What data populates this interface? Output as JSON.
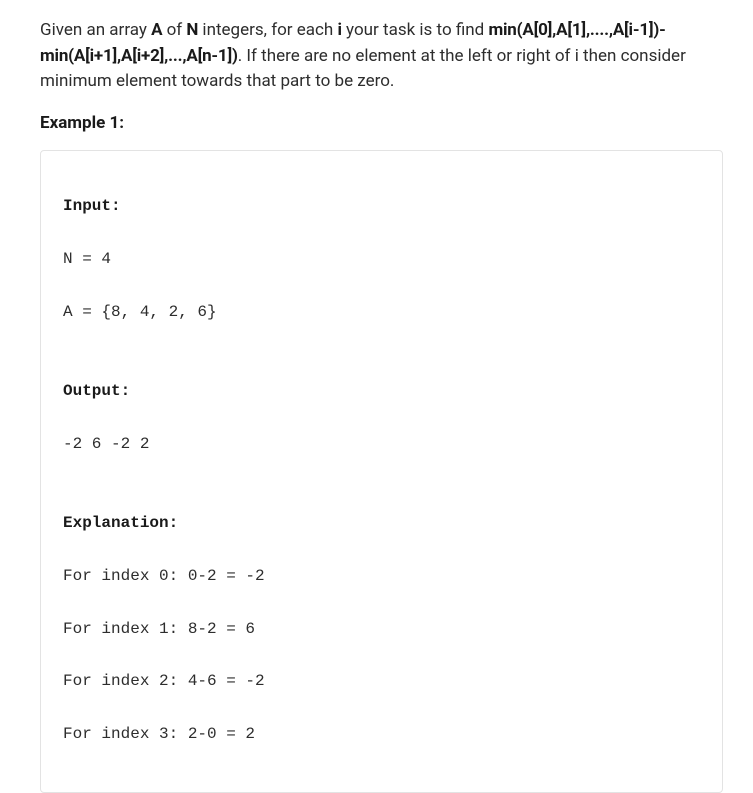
{
  "problem": {
    "part1": "Given an array ",
    "A": "A",
    "part2": " of ",
    "N": "N",
    "part3": " integers, for each ",
    "i": "i",
    "part4": " your task is to find ",
    "formula": "min(A[0],A[1],....,A[i-1])-min(A[i+1],A[i+2],...,A[n-1])",
    "part5": ". If there are no element at the left or right of i then consider minimum element towards that part to be zero."
  },
  "example": {
    "label": "Example 1:",
    "input_label": "Input:",
    "input_lines": [
      "N = 4",
      "A = {8, 4, 2, 6}"
    ],
    "output_label": "Output:",
    "output_lines": [
      "-2 6 -2 2"
    ],
    "explanation_label": "Explanation:",
    "explanation_lines": [
      "For index 0: 0-2 = -2",
      "For index 1: 8-2 = 6",
      "For index 2: 4-6 = -2",
      "For index 3: 2-0 = 2"
    ]
  }
}
